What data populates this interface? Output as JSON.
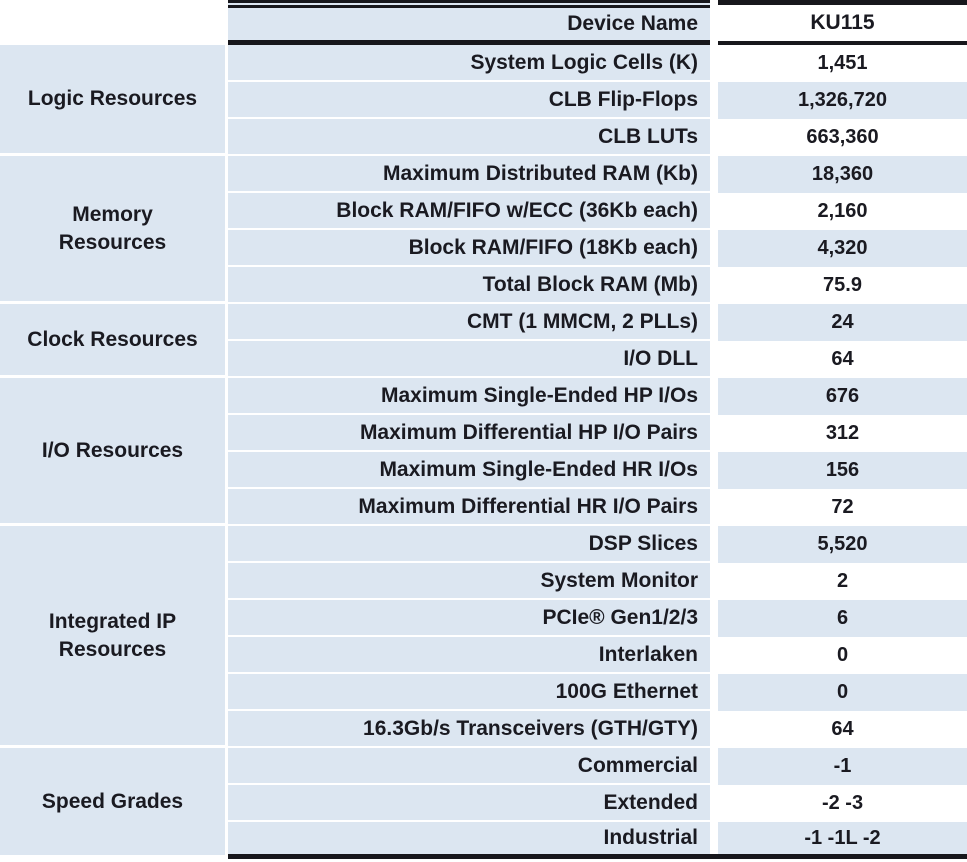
{
  "table": {
    "header": {
      "device_label": "Device Name",
      "device_value": "KU115"
    },
    "groups": [
      {
        "category": "Logic Resources",
        "rows": [
          {
            "label": "System Logic Cells (K)",
            "value": "1,451"
          },
          {
            "label": "CLB Flip-Flops",
            "value": "1,326,720"
          },
          {
            "label": "CLB LUTs",
            "value": "663,360"
          }
        ]
      },
      {
        "category": "Memory Resources",
        "rows": [
          {
            "label": "Maximum Distributed RAM (Kb)",
            "value": "18,360"
          },
          {
            "label": "Block RAM/FIFO w/ECC (36Kb each)",
            "value": "2,160"
          },
          {
            "label": "Block RAM/FIFO (18Kb each)",
            "value": "4,320"
          },
          {
            "label": "Total Block RAM (Mb)",
            "value": "75.9"
          }
        ]
      },
      {
        "category": "Clock Resources",
        "rows": [
          {
            "label": "CMT (1 MMCM, 2 PLLs)",
            "value": "24"
          },
          {
            "label": "I/O DLL",
            "value": "64"
          }
        ]
      },
      {
        "category": "I/O Resources",
        "rows": [
          {
            "label": "Maximum Single-Ended HP I/Os",
            "value": "676"
          },
          {
            "label": "Maximum Differential HP I/O Pairs",
            "value": "312"
          },
          {
            "label": "Maximum Single-Ended HR I/Os",
            "value": "156"
          },
          {
            "label": "Maximum Differential HR I/O Pairs",
            "value": "72"
          }
        ]
      },
      {
        "category": "Integrated IP Resources",
        "rows": [
          {
            "label": "DSP Slices",
            "value": "5,520"
          },
          {
            "label": "System Monitor",
            "value": "2"
          },
          {
            "label": "PCIe® Gen1/2/3",
            "value": "6"
          },
          {
            "label": "Interlaken",
            "value": "0"
          },
          {
            "label": "100G Ethernet",
            "value": "0"
          },
          {
            "label": "16.3Gb/s Transceivers (GTH/GTY)",
            "value": "64"
          }
        ]
      },
      {
        "category": "Speed Grades",
        "rows": [
          {
            "label": "Commercial",
            "value": "-1"
          },
          {
            "label": "Extended",
            "value": "-2 -3"
          },
          {
            "label": "Industrial",
            "value": "-1 -1L -2"
          }
        ]
      }
    ],
    "colors": {
      "row_blue": "#dce6f1",
      "text": "#1a1a21",
      "border_black": "#17171c",
      "stripe_white": "#ffffff"
    }
  }
}
